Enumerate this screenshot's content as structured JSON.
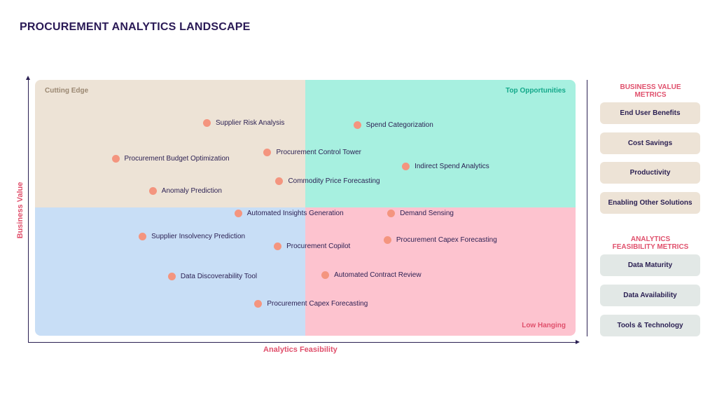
{
  "title": "PROCUREMENT ANALYTICS LANDSCAPE",
  "quadrants": {
    "top_left": "Cutting Edge",
    "top_right": "Top Opportunities",
    "bottom_left": "",
    "bottom_right": "Low Hanging"
  },
  "axes": {
    "x_label": "Analytics Feasibility",
    "y_label": "Business Value"
  },
  "points": [
    {
      "label": "Supplier Risk Analysis",
      "x": 0.318,
      "y": 0.831
    },
    {
      "label": "Spend Categorization",
      "x": 0.596,
      "y": 0.823
    },
    {
      "label": "Procurement Control Tower",
      "x": 0.43,
      "y": 0.717
    },
    {
      "label": "Procurement Budget Optimization",
      "x": 0.149,
      "y": 0.693
    },
    {
      "label": "Indirect Spend Analytics",
      "x": 0.686,
      "y": 0.662
    },
    {
      "label": "Commodity Price Forecasting",
      "x": 0.452,
      "y": 0.605
    },
    {
      "label": "Anomaly Prediction",
      "x": 0.218,
      "y": 0.567
    },
    {
      "label": "Demand Sensing",
      "x": 0.659,
      "y": 0.477
    },
    {
      "label": "Automated Insights Generation",
      "x": 0.376,
      "y": 0.477
    },
    {
      "label": "Supplier Insolvency Prediction",
      "x": 0.199,
      "y": 0.389
    },
    {
      "label": "Procurement Capex Forecasting",
      "x": 0.652,
      "y": 0.373
    },
    {
      "label": "Procurement Copilot",
      "x": 0.449,
      "y": 0.349
    },
    {
      "label": "Automated Contract Review",
      "x": 0.537,
      "y": 0.237
    },
    {
      "label": "Data Discoverability Tool",
      "x": 0.253,
      "y": 0.232
    },
    {
      "label": "Procurement Capex Forecasting",
      "x": 0.413,
      "y": 0.125
    }
  ],
  "business_value_metrics": {
    "heading_line1": "BUSINESS VALUE",
    "heading_line2": "METRICS",
    "items": [
      "End User Benefits",
      "Cost Savings",
      "Productivity",
      "Enabling Other Solutions"
    ]
  },
  "analytics_feasibility_metrics": {
    "heading_line1": "ANALYTICS",
    "heading_line2": "FEASIBILITY METRICS",
    "items": [
      "Data Maturity",
      "Data Availability",
      "Tools & Technology"
    ]
  },
  "colors": {
    "cutting_edge": "#ede3d6",
    "top_opportunities": "#a7f0e0",
    "bottom_left": "#c8def6",
    "low_hanging": "#fdc3cf",
    "point": "#f4957f",
    "accent": "#e0506c"
  }
}
